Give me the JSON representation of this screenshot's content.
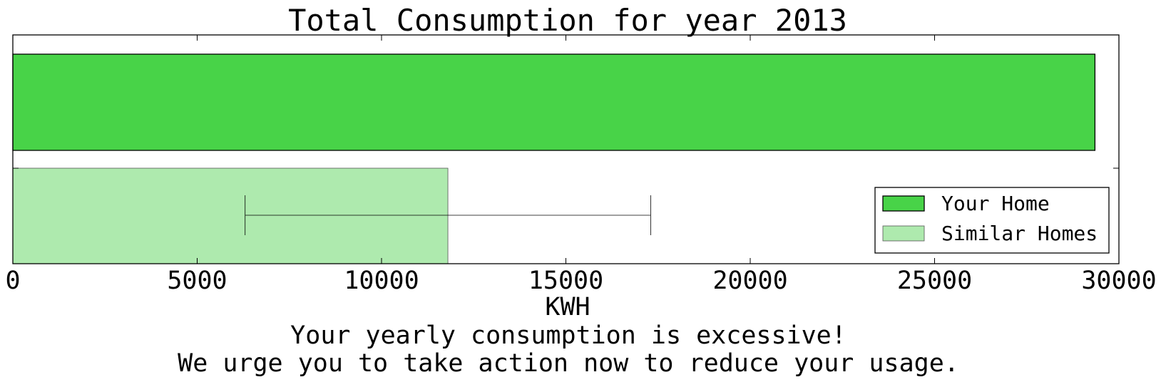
{
  "chart_data": {
    "type": "bar",
    "orientation": "horizontal",
    "title": "Total Consumption for year 2013",
    "xlabel": "KWH",
    "ylabel": "",
    "xlim": [
      0,
      30000
    ],
    "xticks": [
      0,
      5000,
      10000,
      15000,
      20000,
      25000,
      30000
    ],
    "xtick_labels": [
      "0",
      "5000",
      "10000",
      "15000",
      "20000",
      "25000",
      "30000"
    ],
    "categories": [
      "Your Home",
      "Similar Homes"
    ],
    "values": [
      29350,
      11800
    ],
    "error_bar": {
      "category": "Similar Homes",
      "low": 6300,
      "high": 17300
    },
    "colors": [
      "#48d348",
      "#aeeaae"
    ],
    "legend": {
      "placement": "lower-right",
      "entries": [
        "Your Home",
        "Similar Homes"
      ]
    },
    "grid": false
  },
  "message": {
    "line1": "Your yearly consumption is excessive!",
    "line2": "We urge you to take action now to reduce your usage."
  }
}
